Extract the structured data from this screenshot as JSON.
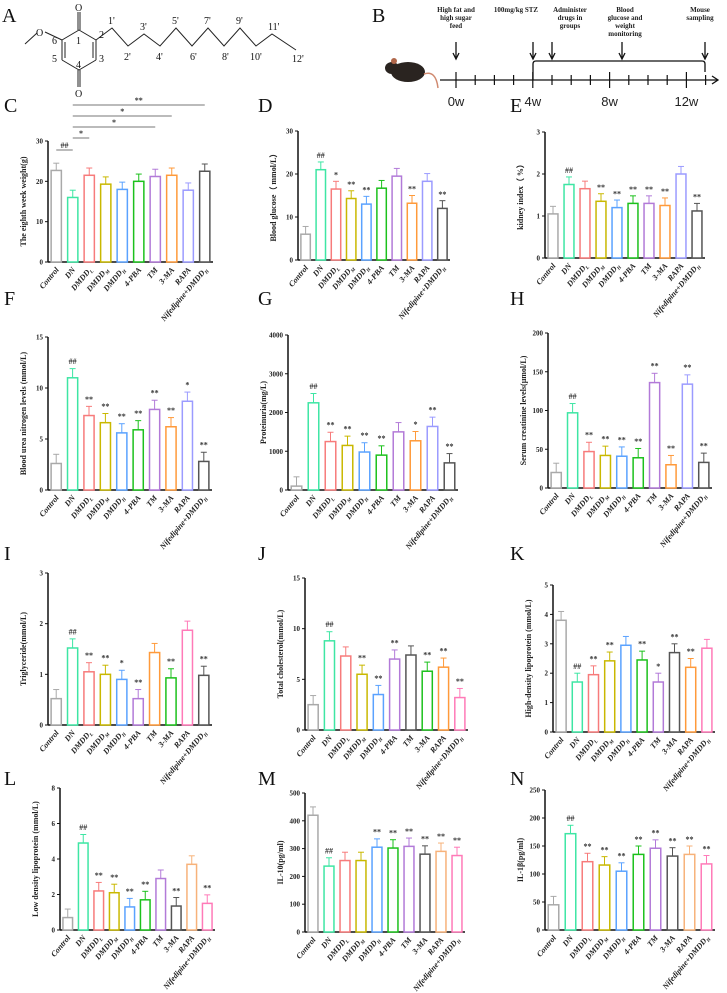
{
  "panel_a": {
    "letter": "A",
    "oxygen": "O",
    "ring_labels": [
      "1",
      "2",
      "3",
      "4",
      "5",
      "6"
    ],
    "chain_labels": [
      "1'",
      "2'",
      "3'",
      "4'",
      "5'",
      "6'",
      "7'",
      "8'",
      "9'",
      "10'",
      "11'",
      "12'"
    ]
  },
  "panel_b": {
    "letter": "B",
    "events": [
      "High fat and high sugar feed",
      "100mg/kg STZ",
      "Administer drugs in groups",
      "Blood glucose and weight monitoring",
      "Mouse sampling"
    ],
    "weeks": [
      "0w",
      "4w",
      "8w",
      "12w"
    ]
  },
  "colors": {
    "gray": "#a9a9a9",
    "teal": "#3ee6a4",
    "salmon": "#f77b7b",
    "olive": "#c9b800",
    "blue": "#5aa2ff",
    "green": "#1cc11c",
    "purple": "#b27ad8",
    "orange": "#ff9a3a",
    "peri": "#9b9bff",
    "dark": "#555555",
    "pink": "#ff7ab8",
    "peach": "#f7b27a"
  },
  "chart_data": [
    {
      "id": "C",
      "letter": "C",
      "type": "bar",
      "ylabel": "The eighth week weight(g)",
      "ylim": [
        0,
        30
      ],
      "yticks": [
        0,
        10,
        20,
        30
      ],
      "categories": [
        [
          "Control",
          ""
        ],
        [
          "DN",
          ""
        ],
        [
          "DMDD",
          "L"
        ],
        [
          "DMDD",
          "M"
        ],
        [
          "DMDD",
          "H"
        ],
        [
          "4-PBA",
          ""
        ],
        [
          "TM",
          ""
        ],
        [
          "3-MA",
          ""
        ],
        [
          "RAPA",
          ""
        ],
        [
          "Nifedipine+DMDD",
          "H"
        ]
      ],
      "colors": [
        "gray",
        "teal",
        "salmon",
        "olive",
        "blue",
        "green",
        "purple",
        "orange",
        "peri",
        "dark"
      ],
      "values": [
        22.7,
        16,
        21.5,
        19.3,
        18,
        20,
        21.2,
        21.5,
        17.8,
        22.5
      ],
      "sig": [
        "",
        "",
        "",
        "",
        "",
        "",
        "",
        "",
        "",
        ""
      ],
      "brackets": [
        {
          "from": 1,
          "to": 9,
          "label": "**"
        },
        {
          "from": 1,
          "to": 7,
          "label": "*"
        },
        {
          "from": 1,
          "to": 6,
          "label": "*"
        },
        {
          "from": 1,
          "to": 2,
          "label": "*"
        },
        {
          "from": 0,
          "to": 1,
          "label": "##"
        }
      ]
    },
    {
      "id": "D",
      "letter": "D",
      "type": "bar",
      "ylabel": "Blood glucose（ mmol/L）",
      "ylim": [
        0,
        30
      ],
      "yticks": [
        0,
        10,
        20,
        30
      ],
      "categories": [
        [
          "Control",
          ""
        ],
        [
          "DN",
          ""
        ],
        [
          "DMDD",
          "L"
        ],
        [
          "DMDD",
          "M"
        ],
        [
          "DMDD",
          "H"
        ],
        [
          "4-PBA",
          ""
        ],
        [
          "TM",
          ""
        ],
        [
          "3-MA",
          ""
        ],
        [
          "RAPA",
          ""
        ],
        [
          "Nifedipine+DMDD",
          "H"
        ]
      ],
      "colors": [
        "gray",
        "teal",
        "salmon",
        "olive",
        "blue",
        "green",
        "purple",
        "orange",
        "peri",
        "dark"
      ],
      "values": [
        6,
        21,
        16.5,
        14.3,
        13,
        16.7,
        19.5,
        13.2,
        18.3,
        12
      ],
      "sig": [
        "",
        "##",
        "*",
        "**",
        "**",
        "",
        "",
        "**",
        "",
        "**"
      ]
    },
    {
      "id": "E",
      "letter": "E",
      "type": "bar",
      "ylabel": "kidney index（ %）",
      "ylim": [
        0,
        3
      ],
      "yticks": [
        0,
        1,
        2,
        3
      ],
      "categories": [
        [
          "Control",
          ""
        ],
        [
          "DN",
          ""
        ],
        [
          "DMDD",
          "L"
        ],
        [
          "DMDD",
          "M"
        ],
        [
          "DMDD",
          "H"
        ],
        [
          "4-PBA",
          ""
        ],
        [
          "TM",
          ""
        ],
        [
          "3-MA",
          ""
        ],
        [
          "RAPA",
          ""
        ],
        [
          "Nifedipine+DMDD",
          "H"
        ]
      ],
      "colors": [
        "gray",
        "teal",
        "salmon",
        "olive",
        "blue",
        "green",
        "purple",
        "orange",
        "peri",
        "dark"
      ],
      "values": [
        1.05,
        1.75,
        1.65,
        1.35,
        1.2,
        1.3,
        1.3,
        1.25,
        2.0,
        1.12
      ],
      "sig": [
        "",
        "##",
        "",
        "**",
        "**",
        "**",
        "**",
        "**",
        "",
        "**"
      ]
    },
    {
      "id": "F",
      "letter": "F",
      "type": "bar",
      "ylabel": "Blood urea nitrogen levels (mmol/L)",
      "ylim": [
        0,
        15
      ],
      "yticks": [
        0,
        5,
        10,
        15
      ],
      "categories": [
        [
          "Control",
          ""
        ],
        [
          "DN",
          ""
        ],
        [
          "DMDD",
          "L"
        ],
        [
          "DMDD",
          "M"
        ],
        [
          "DMDD",
          "H"
        ],
        [
          "4-PBA",
          ""
        ],
        [
          "TM",
          ""
        ],
        [
          "3-MA",
          ""
        ],
        [
          "RAPA",
          ""
        ],
        [
          "Nifedipine+DMDD",
          "H"
        ]
      ],
      "colors": [
        "gray",
        "teal",
        "salmon",
        "olive",
        "blue",
        "green",
        "purple",
        "orange",
        "peri",
        "dark"
      ],
      "values": [
        2.6,
        11,
        7.3,
        6.6,
        5.6,
        5.9,
        7.9,
        6.2,
        8.7,
        2.8
      ],
      "sig": [
        "",
        "##",
        "**",
        "**",
        "**",
        "**",
        "**",
        "**",
        "*",
        "**"
      ]
    },
    {
      "id": "G",
      "letter": "G",
      "type": "bar",
      "ylabel": "Proteinuria(mg/L)",
      "ylim": [
        0,
        4000
      ],
      "yticks": [
        0,
        1000,
        2000,
        3000,
        4000
      ],
      "categories": [
        [
          "Control",
          ""
        ],
        [
          "DN",
          ""
        ],
        [
          "DMDD",
          "L"
        ],
        [
          "DMDD",
          "M"
        ],
        [
          "DMDD",
          "H"
        ],
        [
          "4-PBA",
          ""
        ],
        [
          "TM",
          ""
        ],
        [
          "3-MA",
          ""
        ],
        [
          "RAPA",
          ""
        ],
        [
          "Nifedipine+DMDD",
          "H"
        ]
      ],
      "colors": [
        "gray",
        "teal",
        "salmon",
        "olive",
        "blue",
        "green",
        "purple",
        "orange",
        "peri",
        "dark"
      ],
      "values": [
        100,
        2250,
        1250,
        1150,
        980,
        900,
        1500,
        1270,
        1640,
        700
      ],
      "sig": [
        "",
        "##",
        "**",
        "**",
        "**",
        "**",
        "",
        "*",
        "**",
        "**"
      ]
    },
    {
      "id": "H",
      "letter": "H",
      "type": "bar",
      "ylabel": "Serum creatinine levels(μmol/L)",
      "ylim": [
        0,
        200
      ],
      "yticks": [
        0,
        50,
        100,
        150,
        200
      ],
      "categories": [
        [
          "Control",
          ""
        ],
        [
          "DN",
          ""
        ],
        [
          "DMDD",
          "L"
        ],
        [
          "DMDD",
          "M"
        ],
        [
          "DMDD",
          "H"
        ],
        [
          "4-PBA",
          ""
        ],
        [
          "TM",
          ""
        ],
        [
          "3-MA",
          ""
        ],
        [
          "RAPA",
          ""
        ],
        [
          "Nifedipine+DMDD",
          "H"
        ]
      ],
      "colors": [
        "gray",
        "teal",
        "salmon",
        "olive",
        "blue",
        "green",
        "purple",
        "orange",
        "peri",
        "dark"
      ],
      "values": [
        20,
        97,
        47,
        42,
        41,
        39,
        136,
        30,
        134,
        33
      ],
      "sig": [
        "",
        "##",
        "**",
        "**",
        "**",
        "**",
        "**",
        "**",
        "**",
        "**"
      ]
    },
    {
      "id": "I",
      "letter": "I",
      "type": "bar",
      "ylabel": "Triglyceride(mmol/L)",
      "ylim": [
        0,
        3
      ],
      "yticks": [
        0,
        1,
        2,
        3
      ],
      "categories": [
        [
          "Control",
          ""
        ],
        [
          "DN",
          ""
        ],
        [
          "DMDD",
          "L"
        ],
        [
          "DMDD",
          "M"
        ],
        [
          "DMDD",
          "H"
        ],
        [
          "4-PBA",
          ""
        ],
        [
          "TM",
          ""
        ],
        [
          "3-MA",
          ""
        ],
        [
          "RAPA",
          ""
        ],
        [
          "Nifedipine+DMDD",
          "H"
        ]
      ],
      "colors": [
        "gray",
        "teal",
        "salmon",
        "olive",
        "blue",
        "purple",
        "orange",
        "green",
        "pink",
        "dark"
      ],
      "values": [
        0.52,
        1.52,
        1.05,
        1.0,
        0.9,
        0.52,
        1.43,
        0.93,
        1.87,
        0.98
      ],
      "sig": [
        "",
        "##",
        "**",
        "**",
        "*",
        "**",
        "",
        "**",
        "",
        "**"
      ]
    },
    {
      "id": "J",
      "letter": "J",
      "type": "bar",
      "ylabel": "Total cholesterol(mmol/L)",
      "ylim": [
        0,
        15
      ],
      "yticks": [
        0,
        5,
        10,
        15
      ],
      "categories": [
        [
          "Control",
          ""
        ],
        [
          "DN",
          ""
        ],
        [
          "DMDD",
          "L"
        ],
        [
          "DMDD",
          "M"
        ],
        [
          "DMDD",
          "H"
        ],
        [
          "4-PBA",
          ""
        ],
        [
          "TM",
          ""
        ],
        [
          "3-MA",
          ""
        ],
        [
          "RAPA",
          ""
        ],
        [
          "Nifedipine+DMDD",
          "H"
        ]
      ],
      "colors": [
        "gray",
        "teal",
        "salmon",
        "olive",
        "blue",
        "purple",
        "dark",
        "green",
        "orange",
        "pink"
      ],
      "values": [
        2.5,
        8.8,
        7.3,
        5.5,
        3.5,
        7.0,
        7.4,
        5.8,
        6.2,
        3.2
      ],
      "sig": [
        "",
        "##",
        "",
        "**",
        "**",
        "**",
        "",
        "**",
        "**",
        "**"
      ]
    },
    {
      "id": "K",
      "letter": "K",
      "type": "bar",
      "ylabel": "High-density lipoprotein (mmol/L)",
      "ylim": [
        0,
        5
      ],
      "yticks": [
        0,
        1,
        2,
        3,
        4,
        5
      ],
      "categories": [
        [
          "Control",
          ""
        ],
        [
          "DN",
          ""
        ],
        [
          "DMDD",
          "L"
        ],
        [
          "DMDD",
          "M"
        ],
        [
          "DMDD",
          "H"
        ],
        [
          "4-PBA",
          ""
        ],
        [
          "TM",
          ""
        ],
        [
          "3-MA",
          ""
        ],
        [
          "RAPA",
          ""
        ],
        [
          "Nifedipine+DMDD",
          "H"
        ]
      ],
      "colors": [
        "gray",
        "teal",
        "salmon",
        "olive",
        "blue",
        "green",
        "purple",
        "dark",
        "orange",
        "pink"
      ],
      "values": [
        3.8,
        1.7,
        1.95,
        2.42,
        2.95,
        2.45,
        1.7,
        2.7,
        2.2,
        2.85
      ],
      "sig": [
        "",
        "##",
        "**",
        "**",
        "",
        "**",
        "*",
        "**",
        "**",
        ""
      ]
    },
    {
      "id": "L",
      "letter": "L",
      "type": "bar",
      "ylabel": "Low density lipoprotein (mmol/L)",
      "ylim": [
        0,
        8
      ],
      "yticks": [
        0,
        2,
        4,
        6,
        8
      ],
      "categories": [
        [
          "Control",
          ""
        ],
        [
          "DN",
          ""
        ],
        [
          "DMDD",
          "L"
        ],
        [
          "DMDD",
          "M"
        ],
        [
          "DMDD",
          "H"
        ],
        [
          "4-PBA",
          ""
        ],
        [
          "TM",
          ""
        ],
        [
          "3-MA",
          ""
        ],
        [
          "RAPA",
          ""
        ],
        [
          "Nifedipine+DMDD",
          "H"
        ]
      ],
      "colors": [
        "gray",
        "teal",
        "salmon",
        "olive",
        "blue",
        "green",
        "purple",
        "dark",
        "peach",
        "pink"
      ],
      "values": [
        0.7,
        4.9,
        2.2,
        2.1,
        1.3,
        1.7,
        2.9,
        1.35,
        3.7,
        1.5
      ],
      "sig": [
        "",
        "##",
        "**",
        "**",
        "**",
        "**",
        "",
        "**",
        "",
        "**"
      ]
    },
    {
      "id": "M",
      "letter": "M",
      "type": "bar",
      "ylabel": "IL-10(pg/ml)",
      "ylim": [
        0,
        500
      ],
      "yticks": [
        0,
        100,
        200,
        300,
        400,
        500
      ],
      "categories": [
        [
          "Control",
          ""
        ],
        [
          "DN",
          ""
        ],
        [
          "DMDD",
          "L"
        ],
        [
          "DMDD",
          "M"
        ],
        [
          "DMDD",
          "H"
        ],
        [
          "4-PBA",
          ""
        ],
        [
          "TM",
          ""
        ],
        [
          "3-MA",
          ""
        ],
        [
          "RAPA",
          ""
        ],
        [
          "Nifedipine+DMDD",
          "H"
        ]
      ],
      "colors": [
        "gray",
        "teal",
        "salmon",
        "olive",
        "blue",
        "green",
        "purple",
        "dark",
        "peach",
        "pink"
      ],
      "values": [
        420,
        237,
        257,
        257,
        305,
        302,
        308,
        280,
        290,
        275
      ],
      "sig": [
        "",
        "##",
        "",
        "",
        "**",
        "**",
        "**",
        "**",
        "**",
        "**"
      ]
    },
    {
      "id": "N",
      "letter": "N",
      "type": "bar",
      "ylabel": "IL-1β(pg/ml)",
      "ylim": [
        0,
        250
      ],
      "yticks": [
        0,
        50,
        100,
        150,
        200,
        250
      ],
      "categories": [
        [
          "Control",
          ""
        ],
        [
          "DN",
          ""
        ],
        [
          "DMDD",
          "L"
        ],
        [
          "DMDD",
          "M"
        ],
        [
          "DMDD",
          "H"
        ],
        [
          "4-PBA",
          ""
        ],
        [
          "TM",
          ""
        ],
        [
          "3-MA",
          ""
        ],
        [
          "RAPA",
          ""
        ],
        [
          "Nifedipine+DMDD",
          "H"
        ]
      ],
      "colors": [
        "gray",
        "teal",
        "salmon",
        "olive",
        "blue",
        "green",
        "purple",
        "dark",
        "peach",
        "pink"
      ],
      "values": [
        45,
        172,
        122,
        116,
        105,
        135,
        146,
        132,
        135,
        118
      ],
      "sig": [
        "",
        "##",
        "**",
        "**",
        "**",
        "**",
        "**",
        "**",
        "**",
        "**"
      ]
    }
  ]
}
